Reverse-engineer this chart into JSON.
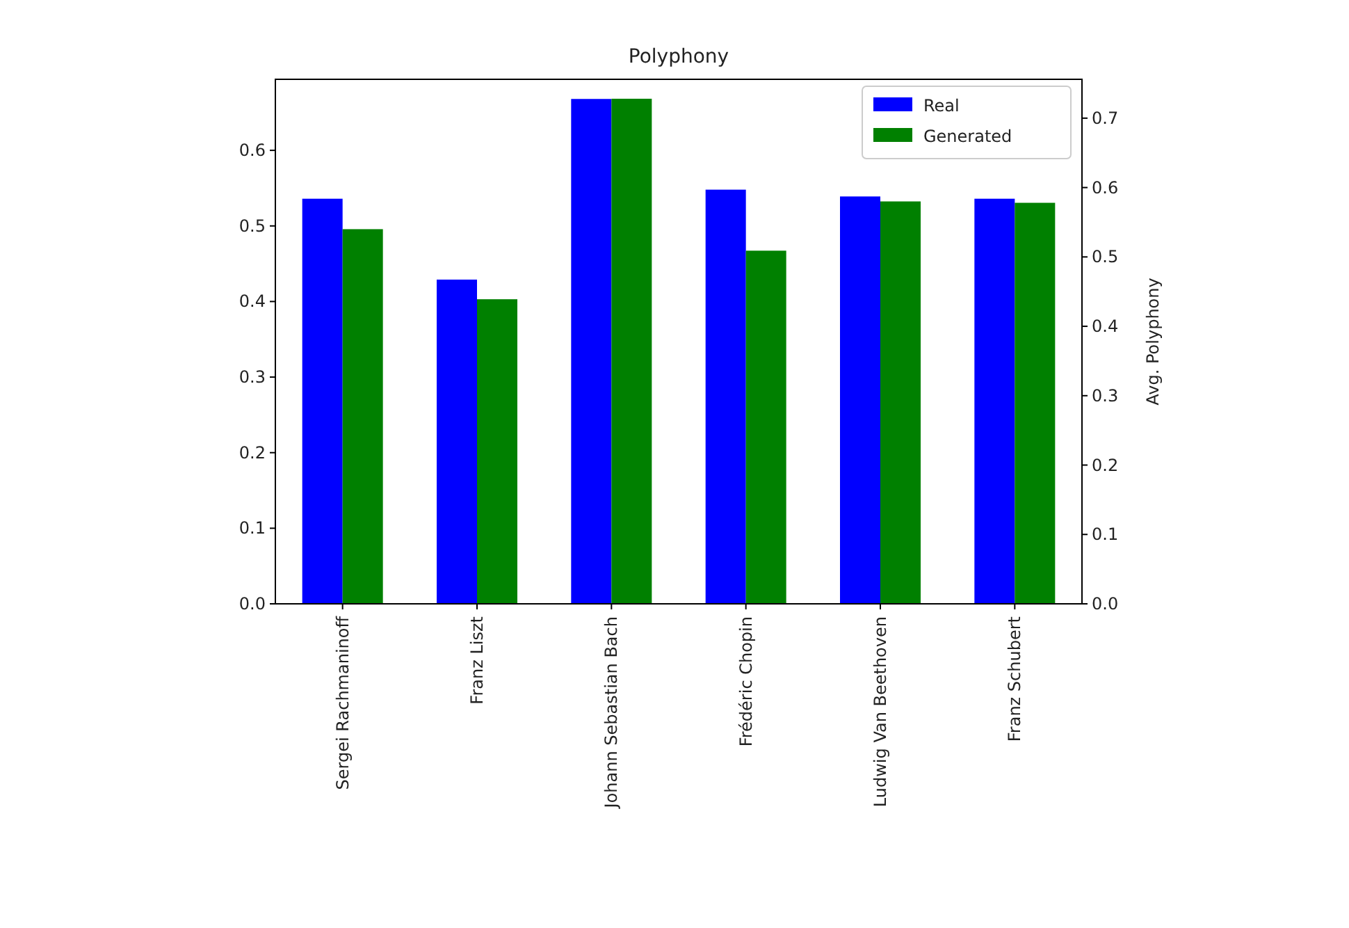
{
  "chart_data": {
    "type": "bar",
    "title": "Polyphony",
    "y2label": "Avg. Polyphony",
    "categories": [
      "Sergei Rachmaninoff",
      "Franz Liszt",
      "Johann Sebastian Bach",
      "Frédéric Chopin",
      "Ludwig Van Beethoven",
      "Franz Schubert"
    ],
    "series": [
      {
        "name": "Real",
        "color": "#0000ff",
        "values": [
          0.536,
          0.429,
          0.668,
          0.548,
          0.539,
          0.536
        ]
      },
      {
        "name": "Generated",
        "color": "#008000",
        "axis": "y2",
        "values": [
          0.54,
          0.439,
          0.728,
          0.509,
          0.58,
          0.578
        ]
      }
    ],
    "ylim": [
      0,
      0.694
    ],
    "yticks": [
      {
        "value": 0,
        "label": "0.0"
      },
      0.1,
      0.2,
      0.3,
      0.4,
      0.5,
      0.6
    ],
    "y2lim": [
      0,
      0.756
    ],
    "y2ticks": [
      {
        "value": 0,
        "label": "0.0"
      },
      0.1,
      0.2,
      0.3,
      0.4,
      0.5,
      0.6,
      0.7
    ],
    "legend": "top right",
    "grid": false
  }
}
